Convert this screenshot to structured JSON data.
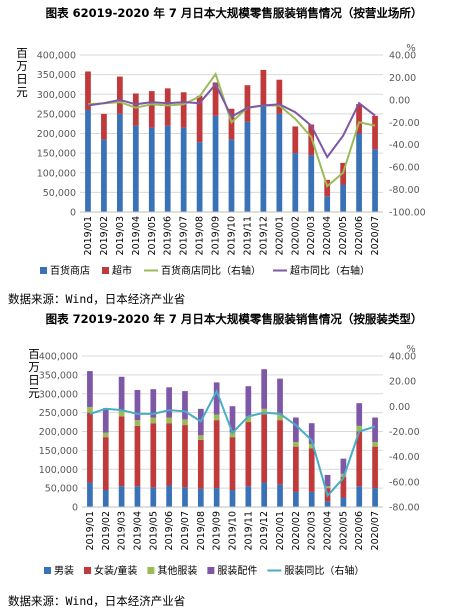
{
  "chart_data": [
    {
      "type": "bar",
      "title": "图表  62019-2020 年 7 月日本大规模零售服装销售情况（按营业场所）",
      "ylabel": "百万日元",
      "y2label": "%",
      "source": "数据来源：Wind，日本经济产业省",
      "categories": [
        "2019/01",
        "2019/02",
        "2019/03",
        "2019/04",
        "2019/05",
        "2019/06",
        "2019/07",
        "2019/08",
        "2019/09",
        "2019/10",
        "2019/11",
        "2019/12",
        "2020/01",
        "2020/02",
        "2020/03",
        "2020/04",
        "2020/05",
        "2020/06",
        "2020/07"
      ],
      "ylim": [
        0,
        400000
      ],
      "y_ticks": [
        0,
        50000,
        100000,
        150000,
        200000,
        250000,
        300000,
        350000,
        400000
      ],
      "y_tick_labels": [
        "0",
        "50,000",
        "100,000",
        "150,000",
        "200,000",
        "250,000",
        "300,000",
        "350,000",
        "400,000"
      ],
      "y2lim": [
        -100,
        40
      ],
      "y2_ticks": [
        -100,
        -80,
        -60,
        -40,
        -20,
        0,
        20,
        40
      ],
      "y2_tick_labels": [
        "-100.00",
        "-80.00",
        "-60.00",
        "-40.00",
        "-20.00",
        "0.00",
        "20.00",
        "40.00"
      ],
      "stacked_bars": [
        {
          "name": "百货商店",
          "color": "#3a72b8",
          "values": [
            260000,
            185000,
            250000,
            220000,
            215000,
            220000,
            215000,
            178000,
            245000,
            185000,
            230000,
            270000,
            250000,
            150000,
            145000,
            40000,
            70000,
            200000,
            160000
          ]
        },
        {
          "name": "超市",
          "color": "#c0393b",
          "values": [
            98000,
            65000,
            95000,
            82000,
            93000,
            95000,
            90000,
            118000,
            85000,
            78000,
            93000,
            92000,
            87000,
            68000,
            78000,
            42000,
            55000,
            75000,
            85000
          ]
        }
      ],
      "lines": [
        {
          "name": "百货商店同比（右轴）",
          "color": "#9bbb59",
          "values": [
            -4,
            -3,
            -2,
            -7,
            -4,
            -5,
            -4,
            3,
            23,
            -20,
            -7,
            -5,
            -5,
            -17,
            -33,
            -77,
            -65,
            -20,
            -23
          ]
        },
        {
          "name": "超市同比（右轴）",
          "color": "#7e57a6",
          "values": [
            -5,
            -3,
            0,
            -4,
            -2,
            -3,
            -2,
            -3,
            14,
            -15,
            -7,
            -5,
            -4,
            -11,
            -23,
            -51,
            -32,
            -3,
            -14
          ]
        }
      ],
      "legend_position": "bottom"
    },
    {
      "type": "bar",
      "title": "图表  72019-2020 年 7 月日本大规模零售服装销售情况（按服装类型）",
      "ylabel": "百万日元",
      "y2label": "%",
      "source": "数据来源：Wind，日本经济产业省",
      "categories": [
        "2019/01",
        "2019/02",
        "2019/03",
        "2019/04",
        "2019/05",
        "2019/06",
        "2019/07",
        "2019/08",
        "2019/09",
        "2019/10",
        "2019/11",
        "2019/12",
        "2020/01",
        "2020/02",
        "2020/03",
        "2020/04",
        "2020/05",
        "2020/06",
        "2020/07"
      ],
      "ylim": [
        0,
        400000
      ],
      "y_ticks": [
        0,
        50000,
        100000,
        150000,
        200000,
        250000,
        300000,
        350000,
        400000
      ],
      "y_tick_labels": [
        "0",
        "50,000",
        "100,000",
        "150,000",
        "200,000",
        "250,000",
        "300,000",
        "350,000",
        "400,000"
      ],
      "y2lim": [
        -80,
        40
      ],
      "y2_ticks": [
        -80,
        -60,
        -40,
        -20,
        0,
        20,
        40
      ],
      "y2_tick_labels": [
        "-80.00",
        "-60.00",
        "-40.00",
        "-20.00",
        "0.00",
        "20.00",
        "40.00"
      ],
      "stacked_bars": [
        {
          "name": "男装",
          "color": "#3a72b8",
          "values": [
            65000,
            45000,
            55000,
            55000,
            52000,
            57000,
            52000,
            48000,
            50000,
            45000,
            55000,
            65000,
            60000,
            40000,
            40000,
            15000,
            25000,
            55000,
            50000
          ]
        },
        {
          "name": "女装/童装",
          "color": "#c0393b",
          "values": [
            185000,
            140000,
            185000,
            160000,
            170000,
            165000,
            165000,
            130000,
            180000,
            140000,
            170000,
            180000,
            170000,
            120000,
            115000,
            35000,
            55000,
            145000,
            110000
          ]
        },
        {
          "name": "其他服装",
          "color": "#9bbb59",
          "values": [
            15000,
            12000,
            15000,
            15000,
            15000,
            15000,
            15000,
            12000,
            15000,
            12000,
            15000,
            15000,
            15000,
            12000,
            12000,
            5000,
            8000,
            15000,
            12000
          ]
        },
        {
          "name": "服装配件",
          "color": "#7e57a6",
          "values": [
            95000,
            65000,
            90000,
            80000,
            75000,
            80000,
            75000,
            70000,
            85000,
            70000,
            80000,
            105000,
            95000,
            65000,
            55000,
            30000,
            40000,
            60000,
            65000
          ]
        }
      ],
      "lines": [
        {
          "name": "服装同比（右轴）",
          "color": "#4aacc5",
          "values": [
            -6,
            -2,
            -3,
            -6,
            -6,
            -3,
            -4,
            -12,
            12,
            -21,
            -8,
            -5,
            -6,
            -15,
            -27,
            -71,
            -57,
            -20,
            -16
          ]
        }
      ],
      "legend_position": "bottom"
    }
  ]
}
